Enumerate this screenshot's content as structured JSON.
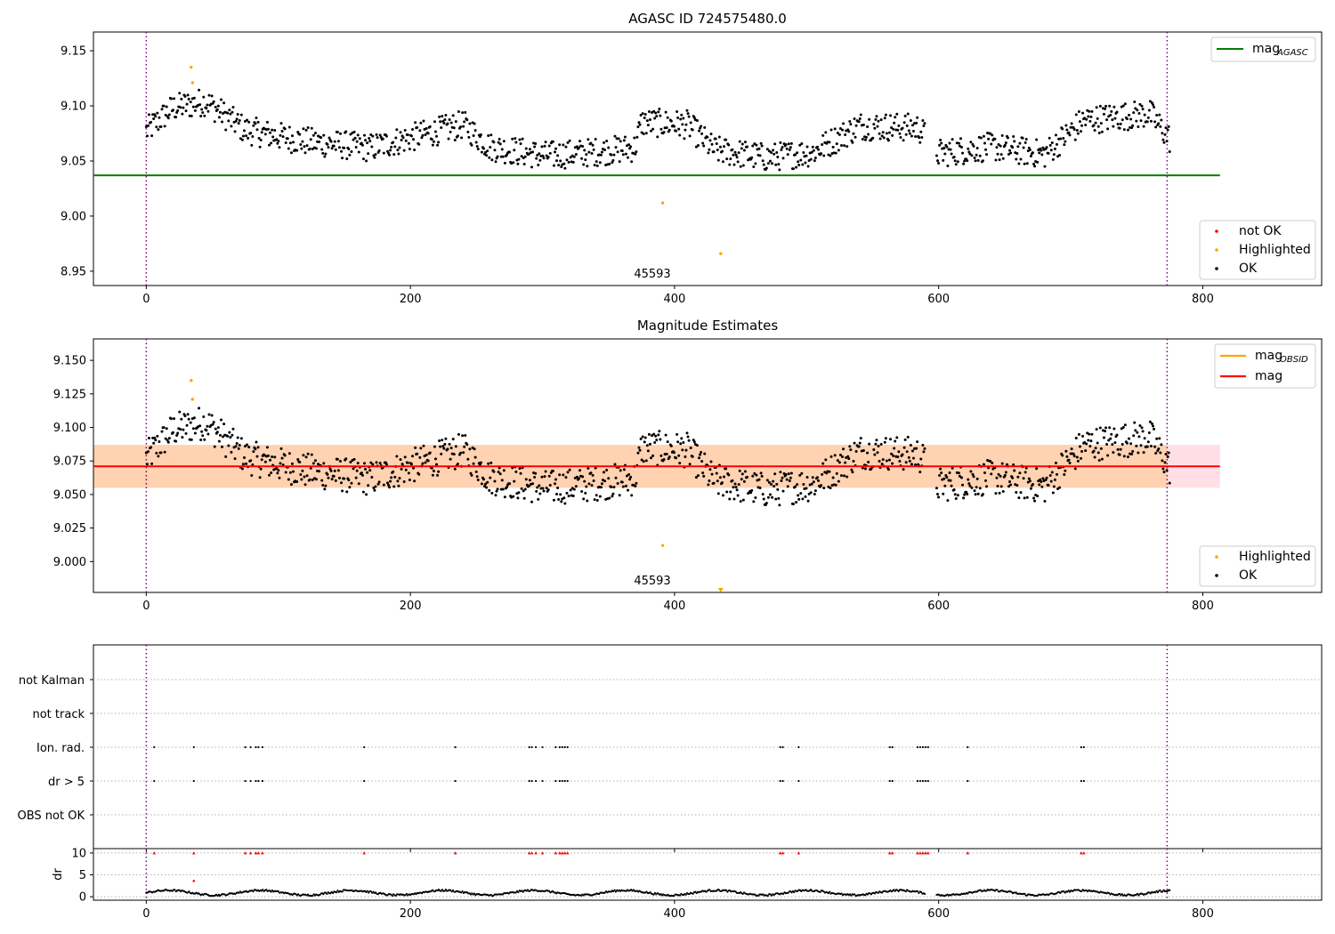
{
  "chart_data": [
    {
      "type": "scatter",
      "title": "AGASC ID 724575480.0",
      "annotation": "45593",
      "xlim": [
        -40,
        890
      ],
      "ylim": [
        8.937,
        9.167
      ],
      "xticks": [
        "0",
        "200",
        "400",
        "600",
        "800"
      ],
      "yticks": [
        "8.95",
        "9.00",
        "9.05",
        "9.10",
        "9.15"
      ],
      "ytick_values": [
        8.95,
        9.0,
        9.05,
        9.1,
        9.15
      ],
      "xtick_values": [
        0,
        200,
        400,
        600,
        800
      ],
      "vlines": [
        0,
        773
      ],
      "hline": {
        "name": "mag_AGASC",
        "label_main": "mag",
        "label_sub": "AGASC",
        "value": 9.037,
        "color": "#008000",
        "x_range": [
          -40,
          813
        ]
      },
      "legend_points": [
        {
          "label": "not OK",
          "color": "#ff0000"
        },
        {
          "label": "Highlighted",
          "color": "#ffa500"
        },
        {
          "label": "OK",
          "color": "#000000"
        }
      ],
      "highlighted_points": [
        [
          34,
          9.135
        ],
        [
          35,
          9.121
        ],
        [
          391,
          9.012
        ],
        [
          435,
          8.966
        ]
      ]
    },
    {
      "type": "scatter",
      "title": "Magnitude Estimates",
      "annotation": "45593",
      "xlim": [
        -40,
        890
      ],
      "ylim": [
        8.977,
        9.166
      ],
      "xticks": [
        "0",
        "200",
        "400",
        "600",
        "800"
      ],
      "yticks": [
        "9.000",
        "9.025",
        "9.050",
        "9.075",
        "9.100",
        "9.125",
        "9.150"
      ],
      "ytick_values": [
        9.0,
        9.025,
        9.05,
        9.075,
        9.1,
        9.125,
        9.15
      ],
      "xtick_values": [
        0,
        200,
        400,
        600,
        800
      ],
      "vlines": [
        0,
        773
      ],
      "mag_line": {
        "label": "mag",
        "value": 9.071,
        "color": "#ff0000",
        "band": [
          9.055,
          9.087
        ]
      },
      "mag_obsid": {
        "label_main": "mag",
        "label_sub": "OBSID",
        "value": 9.071,
        "color": "#ffa500",
        "band": [
          9.055,
          9.087
        ]
      },
      "legend_lines": [
        {
          "label_main": "mag",
          "label_sub": "OBSID",
          "color": "#ffa500"
        },
        {
          "label_main": "mag",
          "label_sub": "",
          "color": "#ff0000"
        }
      ],
      "legend_points": [
        {
          "label": "Highlighted",
          "color": "#ffa500"
        },
        {
          "label": "OK",
          "color": "#000000"
        }
      ],
      "highlighted_points": [
        [
          34,
          9.135
        ],
        [
          35,
          9.121
        ],
        [
          391,
          9.012
        ]
      ],
      "clipped_marker_x": 435
    },
    {
      "type": "scatter",
      "title": "",
      "xlim": [
        -40,
        890
      ],
      "categories": [
        "not Kalman",
        "not track",
        "Ion. rad.",
        "dr > 5",
        "OBS not OK"
      ],
      "flag_x": [
        6,
        36,
        75,
        79,
        83,
        85,
        88,
        165,
        234,
        290,
        292,
        295,
        300,
        310,
        313,
        315,
        317,
        319,
        480,
        482,
        494,
        563,
        565,
        584,
        586,
        588,
        590,
        592,
        622,
        708,
        710
      ],
      "flag_rows": [
        "Ion. rad.",
        "dr > 5"
      ],
      "dr_panel": {
        "ylabel": "dr",
        "yticks": [
          "0",
          "5",
          "10"
        ],
        "ytick_values": [
          0,
          5,
          10
        ],
        "ylim": [
          -0.8,
          11
        ],
        "outlier": [
          36,
          3.6
        ],
        "capped_value": 10
      },
      "xticks": [
        "0",
        "200",
        "400",
        "600",
        "800"
      ],
      "xtick_values": [
        0,
        200,
        400,
        600,
        800
      ],
      "vlines": [
        0,
        773
      ]
    }
  ]
}
